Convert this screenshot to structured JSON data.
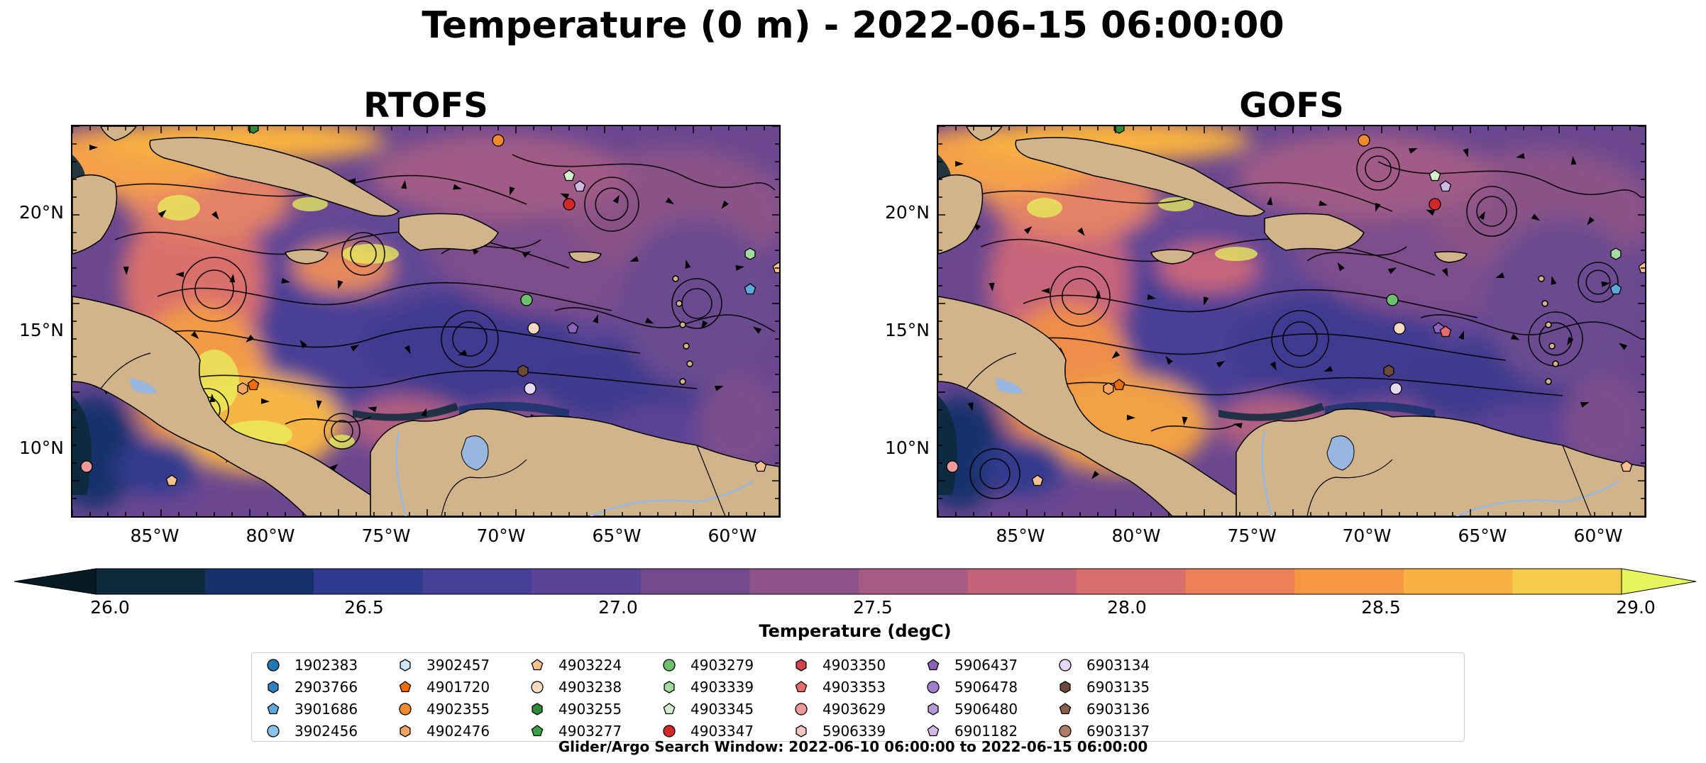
{
  "title": "Temperature (0 m) - 2022-06-15 06:00:00",
  "panels": [
    {
      "title": "RTOFS"
    },
    {
      "title": "GOFS"
    }
  ],
  "lat_ticks": [
    "20°N",
    "15°N",
    "10°N"
  ],
  "lon_ticks": [
    "85°W",
    "80°W",
    "75°W",
    "70°W",
    "65°W",
    "60°W"
  ],
  "colorbar": {
    "label": "Temperature (degC)",
    "ticks": [
      "26.0",
      "26.5",
      "27.0",
      "27.5",
      "28.0",
      "28.5",
      "29.0"
    ],
    "range": [
      26.0,
      29.0
    ],
    "extend": "both",
    "colors": [
      "#0b2a3c",
      "#14316a",
      "#303a8e",
      "#453f97",
      "#5b4396",
      "#744a8e",
      "#8d528a",
      "#a65a84",
      "#c2637a",
      "#d96f6c",
      "#ec8156",
      "#f69744",
      "#f9b241",
      "#f6cc4d"
    ],
    "under_color": "#061a26",
    "over_color": "#e6f45e"
  },
  "colors": {
    "land": "#d2b48c",
    "lake": "#98b7e0",
    "coast": "#000000"
  },
  "legend": [
    {
      "id": "1902383",
      "marker": "circle",
      "color": "#1f77b4"
    },
    {
      "id": "2903766",
      "marker": "hexagon",
      "color": "#2f7fc1"
    },
    {
      "id": "3901686",
      "marker": "pentagon",
      "color": "#5da9dc"
    },
    {
      "id": "3902456",
      "marker": "circle",
      "color": "#8cc2ee"
    },
    {
      "id": "3902457",
      "marker": "hexagon",
      "color": "#cfe6f7"
    },
    {
      "id": "4901720",
      "marker": "pentagon",
      "color": "#ef6c00"
    },
    {
      "id": "4902355",
      "marker": "circle",
      "color": "#f08c2e"
    },
    {
      "id": "4902476",
      "marker": "hexagon",
      "color": "#f4a562"
    },
    {
      "id": "4903224",
      "marker": "pentagon",
      "color": "#f6c08f"
    },
    {
      "id": "4903238",
      "marker": "circle",
      "color": "#f9dcc0"
    },
    {
      "id": "4903255",
      "marker": "hexagon",
      "color": "#2f8a3a"
    },
    {
      "id": "4903277",
      "marker": "pentagon",
      "color": "#3aa245"
    },
    {
      "id": "4903279",
      "marker": "circle",
      "color": "#6cc06e"
    },
    {
      "id": "4903339",
      "marker": "hexagon",
      "color": "#a4dba0"
    },
    {
      "id": "4903345",
      "marker": "pentagon",
      "color": "#d4f0cf"
    },
    {
      "id": "4903347",
      "marker": "circle",
      "color": "#d62728"
    },
    {
      "id": "4903350",
      "marker": "hexagon",
      "color": "#d6414b"
    },
    {
      "id": "4903353",
      "marker": "pentagon",
      "color": "#e76a6d"
    },
    {
      "id": "4903629",
      "marker": "circle",
      "color": "#f0999a"
    },
    {
      "id": "5906339",
      "marker": "hexagon",
      "color": "#f7c4c4"
    },
    {
      "id": "5906437",
      "marker": "pentagon",
      "color": "#8a63b8"
    },
    {
      "id": "5906478",
      "marker": "circle",
      "color": "#a17ecb"
    },
    {
      "id": "5906480",
      "marker": "hexagon",
      "color": "#b79ad8"
    },
    {
      "id": "6901182",
      "marker": "pentagon",
      "color": "#d0b9e6"
    },
    {
      "id": "6903134",
      "marker": "circle",
      "color": "#e6d7f3"
    },
    {
      "id": "6903135",
      "marker": "hexagon",
      "color": "#6b4a3a"
    },
    {
      "id": "6903136",
      "marker": "pentagon",
      "color": "#8c5f4d"
    },
    {
      "id": "6903137",
      "marker": "circle",
      "color": "#b07c66"
    }
  ],
  "footer": "Glider/Argo Search Window: 2022-06-10 06:00:00 to 2022-06-15 06:00:00"
}
